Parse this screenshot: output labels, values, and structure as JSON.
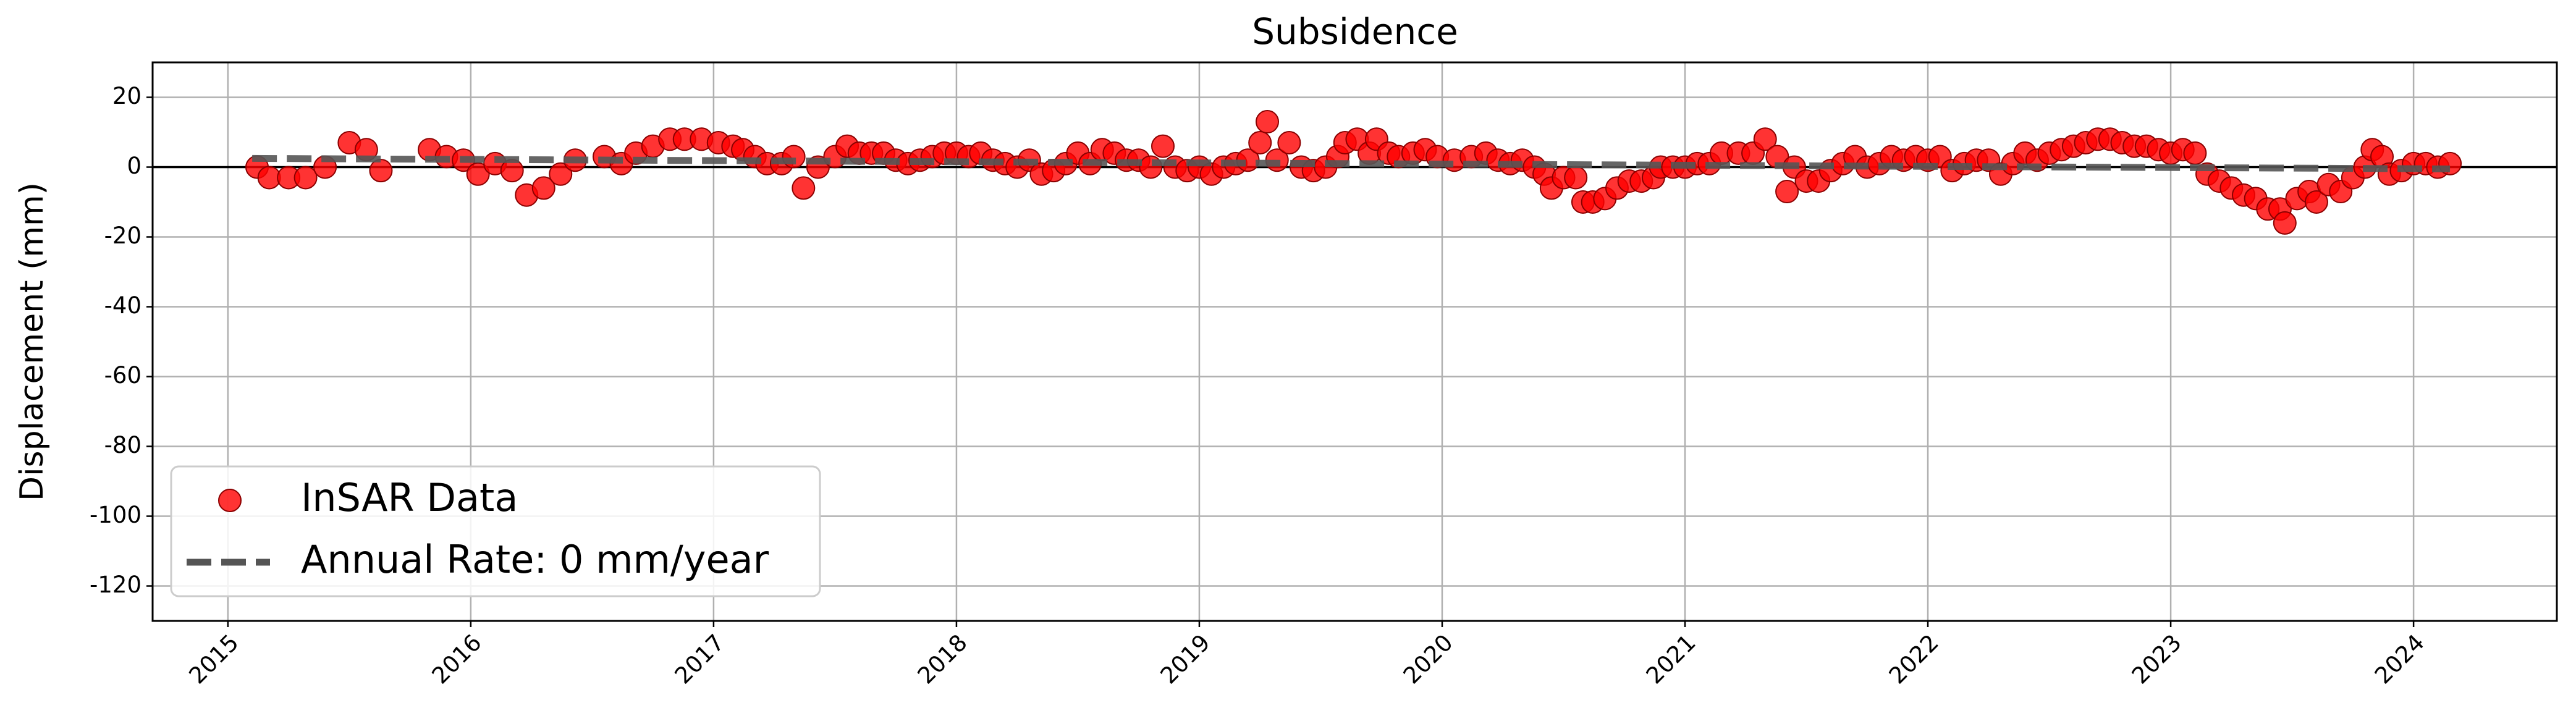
{
  "chart_data": {
    "type": "scatter",
    "title": "Subsidence",
    "y_label": "Displacement (mm)",
    "xlim": [
      2014.69,
      2024.59
    ],
    "xticks": [
      2015,
      2016,
      2017,
      2018,
      2019,
      2020,
      2021,
      2022,
      2023,
      2024
    ],
    "ylim": [
      -130,
      30
    ],
    "yticks": [
      -120,
      -100,
      -80,
      -60,
      -40,
      -20,
      0,
      20
    ],
    "grid": true,
    "hline": 0,
    "legend": "lower left",
    "series": [
      {
        "name": "InSAR Data",
        "type": "scatter",
        "color": "#ff0000",
        "x": [
          2015.12,
          2015.17,
          2015.25,
          2015.32,
          2015.4,
          2015.5,
          2015.57,
          2015.63,
          2015.83,
          2015.9,
          2015.97,
          2016.03,
          2016.1,
          2016.17,
          2016.23,
          2016.3,
          2016.37,
          2016.43,
          2016.55,
          2016.62,
          2016.68,
          2016.75,
          2016.82,
          2016.88,
          2016.95,
          2017.02,
          2017.08,
          2017.12,
          2017.17,
          2017.22,
          2017.28,
          2017.33,
          2017.37,
          2017.43,
          2017.5,
          2017.55,
          2017.6,
          2017.65,
          2017.7,
          2017.75,
          2017.8,
          2017.85,
          2017.9,
          2017.95,
          2018.0,
          2018.05,
          2018.1,
          2018.15,
          2018.2,
          2018.25,
          2018.3,
          2018.35,
          2018.4,
          2018.45,
          2018.5,
          2018.55,
          2018.6,
          2018.65,
          2018.7,
          2018.75,
          2018.8,
          2018.85,
          2018.9,
          2018.95,
          2019.0,
          2019.05,
          2019.1,
          2019.15,
          2019.2,
          2019.25,
          2019.28,
          2019.32,
          2019.37,
          2019.42,
          2019.47,
          2019.52,
          2019.57,
          2019.6,
          2019.65,
          2019.7,
          2019.73,
          2019.78,
          2019.82,
          2019.88,
          2019.93,
          2019.98,
          2020.05,
          2020.12,
          2020.18,
          2020.23,
          2020.28,
          2020.33,
          2020.38,
          2020.42,
          2020.45,
          2020.5,
          2020.55,
          2020.58,
          2020.62,
          2020.67,
          2020.72,
          2020.77,
          2020.82,
          2020.87,
          2020.9,
          2020.95,
          2021.0,
          2021.05,
          2021.1,
          2021.15,
          2021.22,
          2021.28,
          2021.33,
          2021.38,
          2021.42,
          2021.45,
          2021.5,
          2021.55,
          2021.6,
          2021.65,
          2021.7,
          2021.75,
          2021.8,
          2021.85,
          2021.9,
          2021.95,
          2022.0,
          2022.05,
          2022.1,
          2022.15,
          2022.2,
          2022.25,
          2022.3,
          2022.35,
          2022.4,
          2022.45,
          2022.5,
          2022.55,
          2022.6,
          2022.65,
          2022.7,
          2022.75,
          2022.8,
          2022.85,
          2022.9,
          2022.95,
          2023.0,
          2023.05,
          2023.1,
          2023.15,
          2023.2,
          2023.25,
          2023.3,
          2023.35,
          2023.4,
          2023.45,
          2023.47,
          2023.52,
          2023.57,
          2023.6,
          2023.65,
          2023.7,
          2023.75,
          2023.8,
          2023.83,
          2023.87,
          2023.9,
          2023.95,
          2024.0,
          2024.05,
          2024.1,
          2024.15
        ],
        "values": [
          0,
          -3,
          -3,
          -3,
          0,
          7,
          5,
          -1,
          5,
          3,
          2,
          -2,
          1,
          -1,
          -8,
          -6,
          -2,
          2,
          3,
          1,
          4,
          6,
          8,
          8,
          8,
          7,
          6,
          5,
          3,
          1,
          1,
          3,
          -6,
          0,
          3,
          6,
          4,
          4,
          4,
          2,
          1,
          2,
          3,
          4,
          4,
          3,
          4,
          2,
          1,
          0,
          2,
          -2,
          -1,
          1,
          4,
          1,
          5,
          4,
          2,
          2,
          0,
          6,
          0,
          -1,
          0,
          -2,
          0,
          1,
          2,
          7,
          13,
          2,
          7,
          0,
          -1,
          0,
          3,
          7,
          8,
          4,
          8,
          4,
          3,
          4,
          5,
          3,
          2,
          3,
          4,
          2,
          1,
          2,
          0,
          -2,
          -6,
          -3,
          -3,
          -10,
          -10,
          -9,
          -6,
          -4,
          -4,
          -3,
          0,
          0,
          0,
          1,
          1,
          4,
          4,
          4,
          8,
          3,
          -7,
          0,
          -4,
          -4,
          -1,
          1,
          3,
          0,
          1,
          3,
          2,
          3,
          2,
          3,
          -1,
          1,
          2,
          2,
          -2,
          1,
          4,
          2,
          4,
          5,
          6,
          7,
          8,
          8,
          7,
          6,
          6,
          5,
          4,
          5,
          4,
          -2,
          -4,
          -6,
          -8,
          -9,
          -12,
          -12,
          -16,
          -9,
          -7,
          -10,
          -5,
          -7,
          -3,
          0,
          5,
          3,
          -2,
          -1,
          1,
          1,
          0,
          1
        ]
      },
      {
        "name": "Annual Rate: 0 mm/year",
        "type": "line",
        "color": "#555555",
        "x": [
          2015.1,
          2024.15
        ],
        "values": [
          2.5,
          -0.5
        ]
      }
    ]
  }
}
